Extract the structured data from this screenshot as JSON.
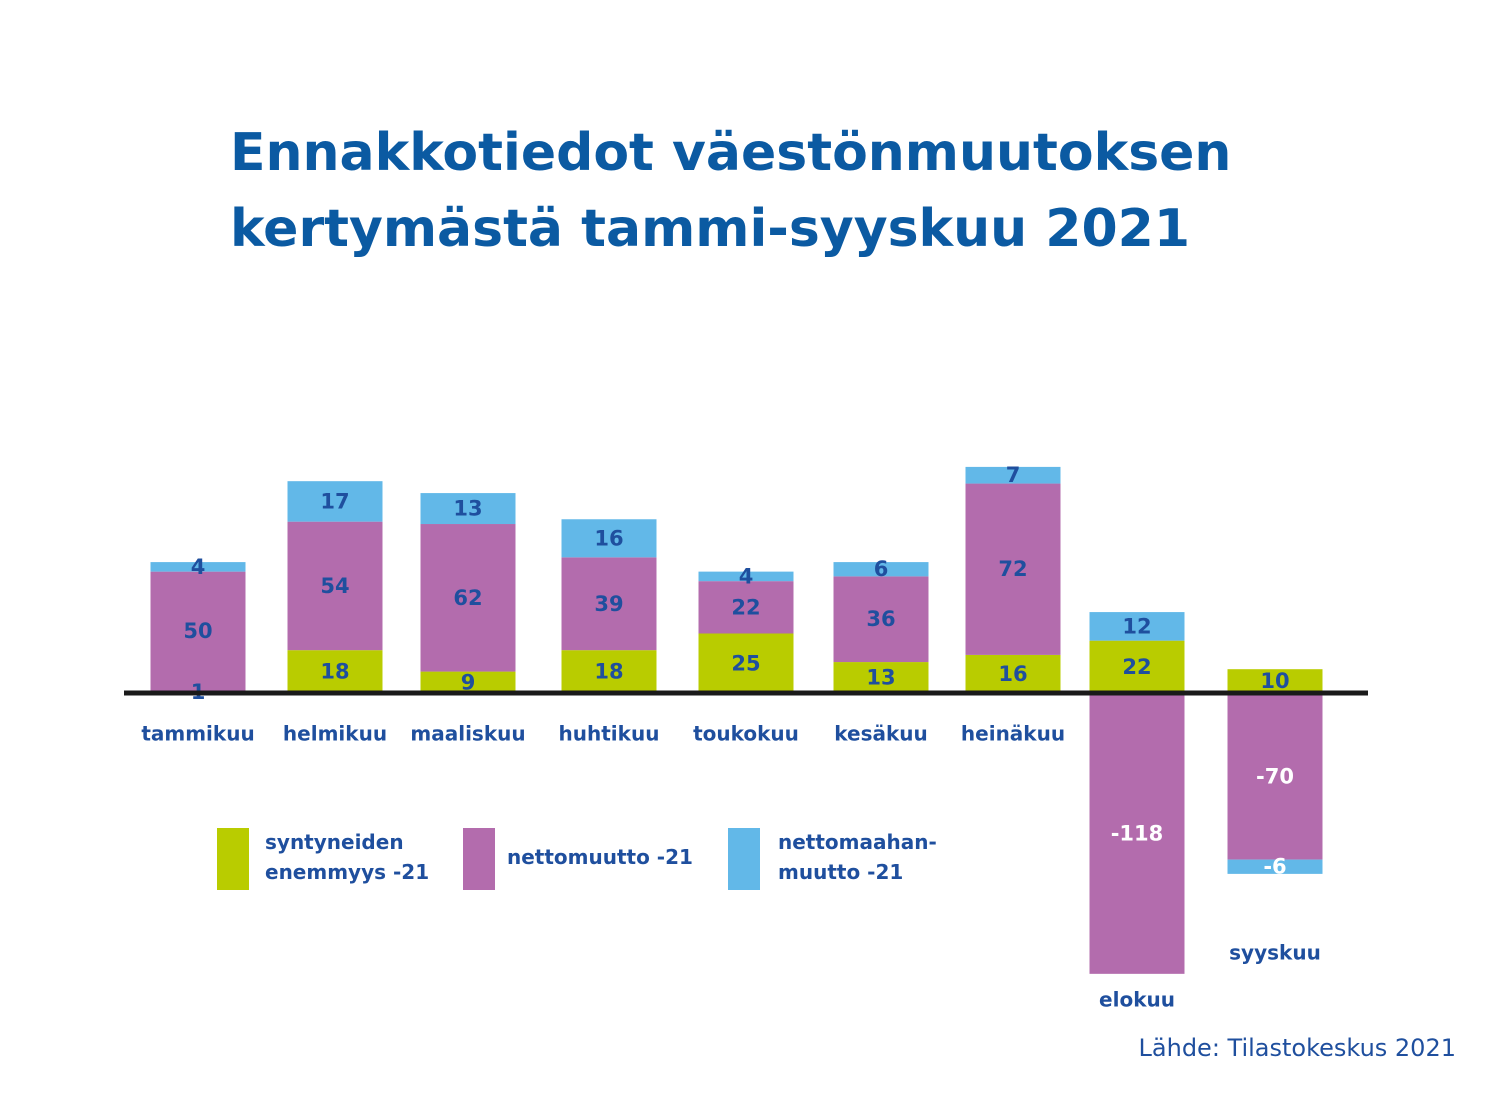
{
  "chart_data": {
    "type": "bar",
    "stacked": true,
    "title_lines": [
      "Ennakkotiedot väestönmuutoksen",
      "kertymästä tammi-syyskuu 2021"
    ],
    "categories": [
      "tammikuu",
      "helmikuu",
      "maaliskuu",
      "huhtikuu",
      "toukokuu",
      "kesäkuu",
      "heinäkuu",
      "elokuu",
      "syyskuu"
    ],
    "series": [
      {
        "name": "syntyneiden enemmyys -21",
        "legend_lines": [
          "syntyneiden",
          "enemmyys -21"
        ],
        "color": "#b9cc00",
        "values": [
          1,
          18,
          9,
          18,
          25,
          13,
          16,
          22,
          10
        ]
      },
      {
        "name": "nettomuutto -21",
        "legend_lines": [
          "nettomuutto -21"
        ],
        "color": "#b36cad",
        "values": [
          50,
          54,
          62,
          39,
          22,
          36,
          72,
          -118,
          -70
        ]
      },
      {
        "name": "nettomaahanmuutto -21",
        "legend_lines": [
          "nettomaahan-",
          "muutto -21"
        ],
        "color": "#62b8e8",
        "values": [
          4,
          17,
          13,
          16,
          4,
          6,
          7,
          12,
          -6
        ]
      }
    ],
    "axis_line_color": "#1a1a1a",
    "source": "Lähde: Tilastokeskus 2021"
  }
}
